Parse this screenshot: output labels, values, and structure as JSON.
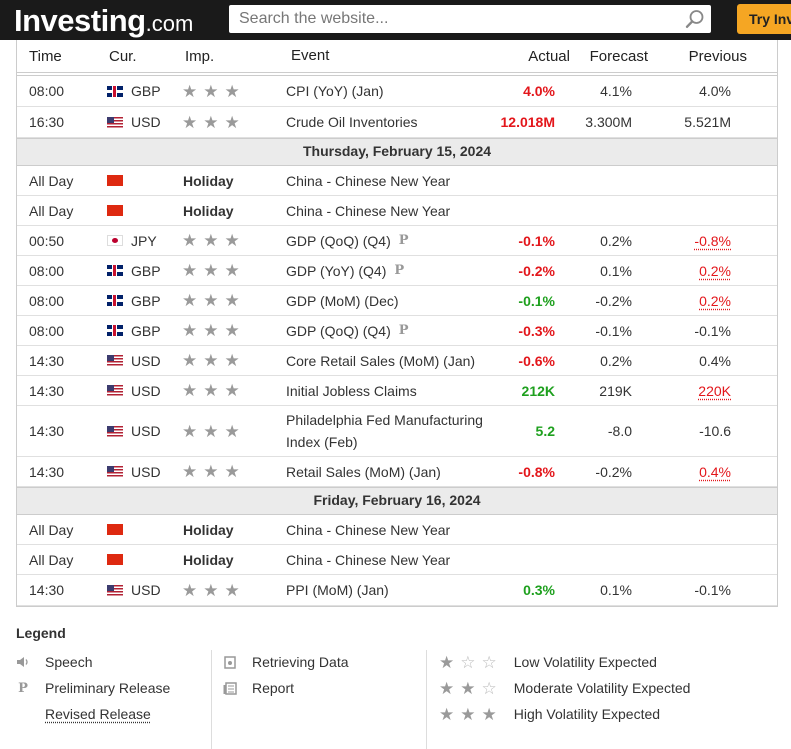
{
  "header": {
    "logo_main": "Investing",
    "logo_suffix": ".com",
    "search_placeholder": "Search the website...",
    "try_label": "Try Inv"
  },
  "columns": {
    "time": "Time",
    "cur": "Cur.",
    "imp": "Imp.",
    "event": "Event",
    "actual": "Actual",
    "forecast": "Forecast",
    "previous": "Previous"
  },
  "rows": [
    {
      "type": "event",
      "time": "08:00",
      "flag": "gb",
      "cur": "GBP",
      "imp": 3,
      "event": "CPI (YoY) (Jan)",
      "actual": "4.0%",
      "actual_color": "red",
      "forecast": "4.1%",
      "previous": "4.0%",
      "previous_color": "",
      "height": 31,
      "prelim": false
    },
    {
      "type": "event",
      "time": "16:30",
      "flag": "us",
      "cur": "USD",
      "imp": 3,
      "event": "Crude Oil Inventories",
      "actual": "12.018M",
      "actual_color": "red",
      "forecast": "3.300M",
      "previous": "5.521M",
      "previous_color": "",
      "height": 31,
      "prelim": false
    },
    {
      "type": "date",
      "label": "Thursday, February 15, 2024",
      "height": 27
    },
    {
      "type": "holiday",
      "time": "All Day",
      "flag": "cn",
      "holiday": "Holiday",
      "event": "China - Chinese New Year",
      "height": 30
    },
    {
      "type": "holiday",
      "time": "All Day",
      "flag": "cn",
      "holiday": "Holiday",
      "event": "China - Chinese New Year",
      "height": 30
    },
    {
      "type": "event",
      "time": "00:50",
      "flag": "jp",
      "cur": "JPY",
      "imp": 3,
      "event": "GDP (QoQ) (Q4)",
      "actual": "-0.1%",
      "actual_color": "red",
      "forecast": "0.2%",
      "previous": "-0.8%",
      "previous_color": "red",
      "revised": true,
      "height": 30,
      "prelim": true
    },
    {
      "type": "event",
      "time": "08:00",
      "flag": "gb",
      "cur": "GBP",
      "imp": 3,
      "event": "GDP (YoY) (Q4)",
      "actual": "-0.2%",
      "actual_color": "red",
      "forecast": "0.1%",
      "previous": "0.2%",
      "previous_color": "red",
      "revised": true,
      "height": 30,
      "prelim": true
    },
    {
      "type": "event",
      "time": "08:00",
      "flag": "gb",
      "cur": "GBP",
      "imp": 3,
      "event": "GDP (MoM) (Dec)",
      "actual": "-0.1%",
      "actual_color": "green",
      "forecast": "-0.2%",
      "previous": "0.2%",
      "previous_color": "red",
      "revised": true,
      "height": 30,
      "prelim": false
    },
    {
      "type": "event",
      "time": "08:00",
      "flag": "gb",
      "cur": "GBP",
      "imp": 3,
      "event": "GDP (QoQ) (Q4)",
      "actual": "-0.3%",
      "actual_color": "red",
      "forecast": "-0.1%",
      "previous": "-0.1%",
      "previous_color": "",
      "height": 30,
      "prelim": true
    },
    {
      "type": "event",
      "time": "14:30",
      "flag": "us",
      "cur": "USD",
      "imp": 3,
      "event": "Core Retail Sales (MoM) (Jan)",
      "actual": "-0.6%",
      "actual_color": "red",
      "forecast": "0.2%",
      "previous": "0.4%",
      "previous_color": "",
      "height": 30,
      "prelim": false
    },
    {
      "type": "event",
      "time": "14:30",
      "flag": "us",
      "cur": "USD",
      "imp": 3,
      "event": "Initial Jobless Claims",
      "actual": "212K",
      "actual_color": "green",
      "forecast": "219K",
      "previous": "220K",
      "previous_color": "red",
      "revised": true,
      "height": 30,
      "prelim": false
    },
    {
      "type": "event",
      "time": "14:30",
      "flag": "us",
      "cur": "USD",
      "imp": 3,
      "event": "Philadelphia Fed Manufacturing Index (Feb)",
      "actual": "5.2",
      "actual_color": "green",
      "forecast": "-8.0",
      "previous": "-10.6",
      "previous_color": "",
      "height": 51,
      "prelim": false
    },
    {
      "type": "event",
      "time": "14:30",
      "flag": "us",
      "cur": "USD",
      "imp": 3,
      "event": "Retail Sales (MoM) (Jan)",
      "actual": "-0.8%",
      "actual_color": "red",
      "forecast": "-0.2%",
      "previous": "0.4%",
      "previous_color": "red",
      "revised": true,
      "height": 30,
      "prelim": false
    },
    {
      "type": "date",
      "label": "Friday, February 16, 2024",
      "height": 27
    },
    {
      "type": "holiday",
      "time": "All Day",
      "flag": "cn",
      "holiday": "Holiday",
      "event": "China - Chinese New Year",
      "height": 30
    },
    {
      "type": "holiday",
      "time": "All Day",
      "flag": "cn",
      "holiday": "Holiday",
      "event": "China - Chinese New Year",
      "height": 30
    },
    {
      "type": "event",
      "time": "14:30",
      "flag": "us",
      "cur": "USD",
      "imp": 3,
      "event": "PPI (MoM) (Jan)",
      "actual": "0.3%",
      "actual_color": "green",
      "forecast": "0.1%",
      "previous": "-0.1%",
      "previous_color": "",
      "height": 31,
      "prelim": false
    }
  ],
  "legend": {
    "title": "Legend",
    "speech": "Speech",
    "preliminary": "Preliminary Release",
    "revised": "Revised Release",
    "retrieving": "Retrieving Data",
    "report": "Report",
    "low": "Low Volatility Expected",
    "moderate": "Moderate Volatility Expected",
    "high": "High Volatility Expected"
  },
  "colors": {
    "red": "#e3161b",
    "green": "#1ea01e",
    "accent": "#f5a623",
    "header_bg": "#1a1a1a"
  },
  "icons": {
    "search": "magnifier-icon",
    "star": "star-icon",
    "speech": "speaker-icon",
    "preliminary": "p-icon",
    "retrieving": "document-icon",
    "report": "report-icon"
  }
}
